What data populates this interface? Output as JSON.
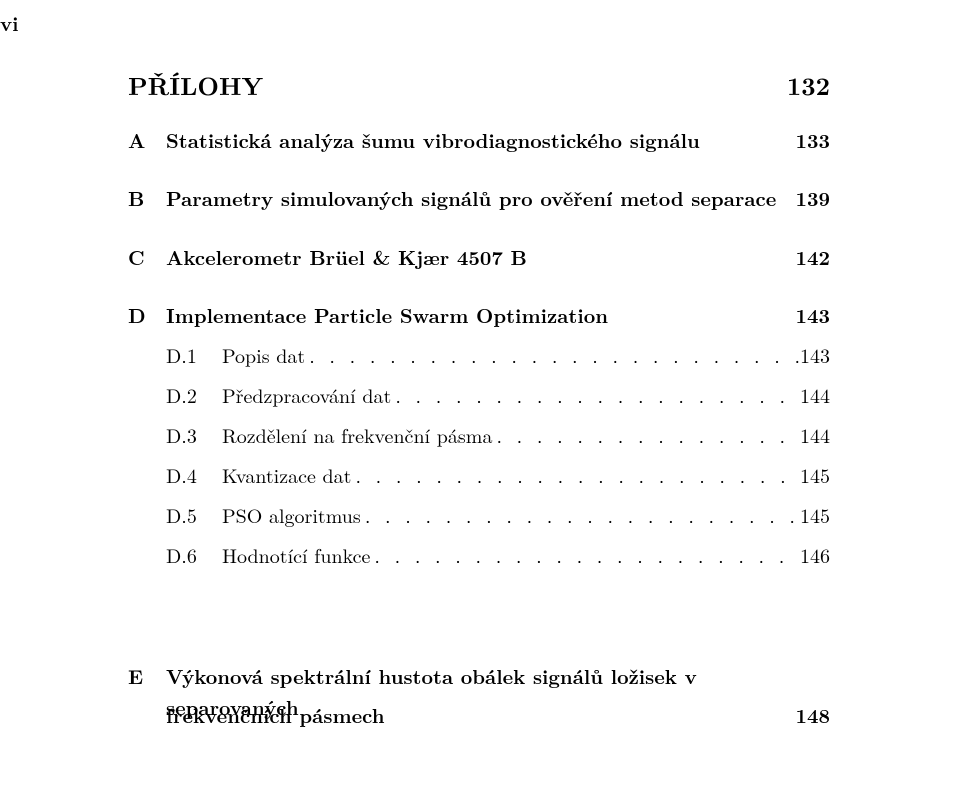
{
  "page_roman": "vi",
  "heading": {
    "title": "PŘÍLOHY",
    "page": "132"
  },
  "appendices": {
    "a": {
      "letter": "A",
      "title": "Statistická analýza šumu vibrodiagnostického signálu",
      "page": "133"
    },
    "b": {
      "letter": "B",
      "title": "Parametry simulovaných signálů pro ověření metod separace",
      "page": "139"
    },
    "c": {
      "letter": "C",
      "title": "Akcelerometr Brüel & Kjær 4507 B",
      "page": "142"
    },
    "d": {
      "letter": "D",
      "title": "Implementace Particle Swarm Optimization",
      "page": "143"
    },
    "e": {
      "letter": "E",
      "title_line1": "Výkonová spektrální hustota obálek signálů ložisek v separovaných",
      "title_line2": "frekvenčních pásmech",
      "page": "148"
    }
  },
  "subsections": {
    "d1": {
      "num": "D.1",
      "title": "Popis dat",
      "page": "143"
    },
    "d2": {
      "num": "D.2",
      "title": "Předzpracování dat",
      "page": "144"
    },
    "d3": {
      "num": "D.3",
      "title": "Rozdělení na frekvenční pásma",
      "page": "144"
    },
    "d4": {
      "num": "D.4",
      "title": "Kvantizace dat",
      "page": "145"
    },
    "d5": {
      "num": "D.5",
      "title": "PSO algoritmus",
      "page": "145"
    },
    "d6": {
      "num": "D.6",
      "title": "Hodnotící funkce",
      "page": "146"
    }
  },
  "leader_dots": ". . . . . . . . . . . . . . . . . . . . . . . . . . . . . . . . . . . . . . . . . . . . . . . . . . . . . . . . . ."
}
